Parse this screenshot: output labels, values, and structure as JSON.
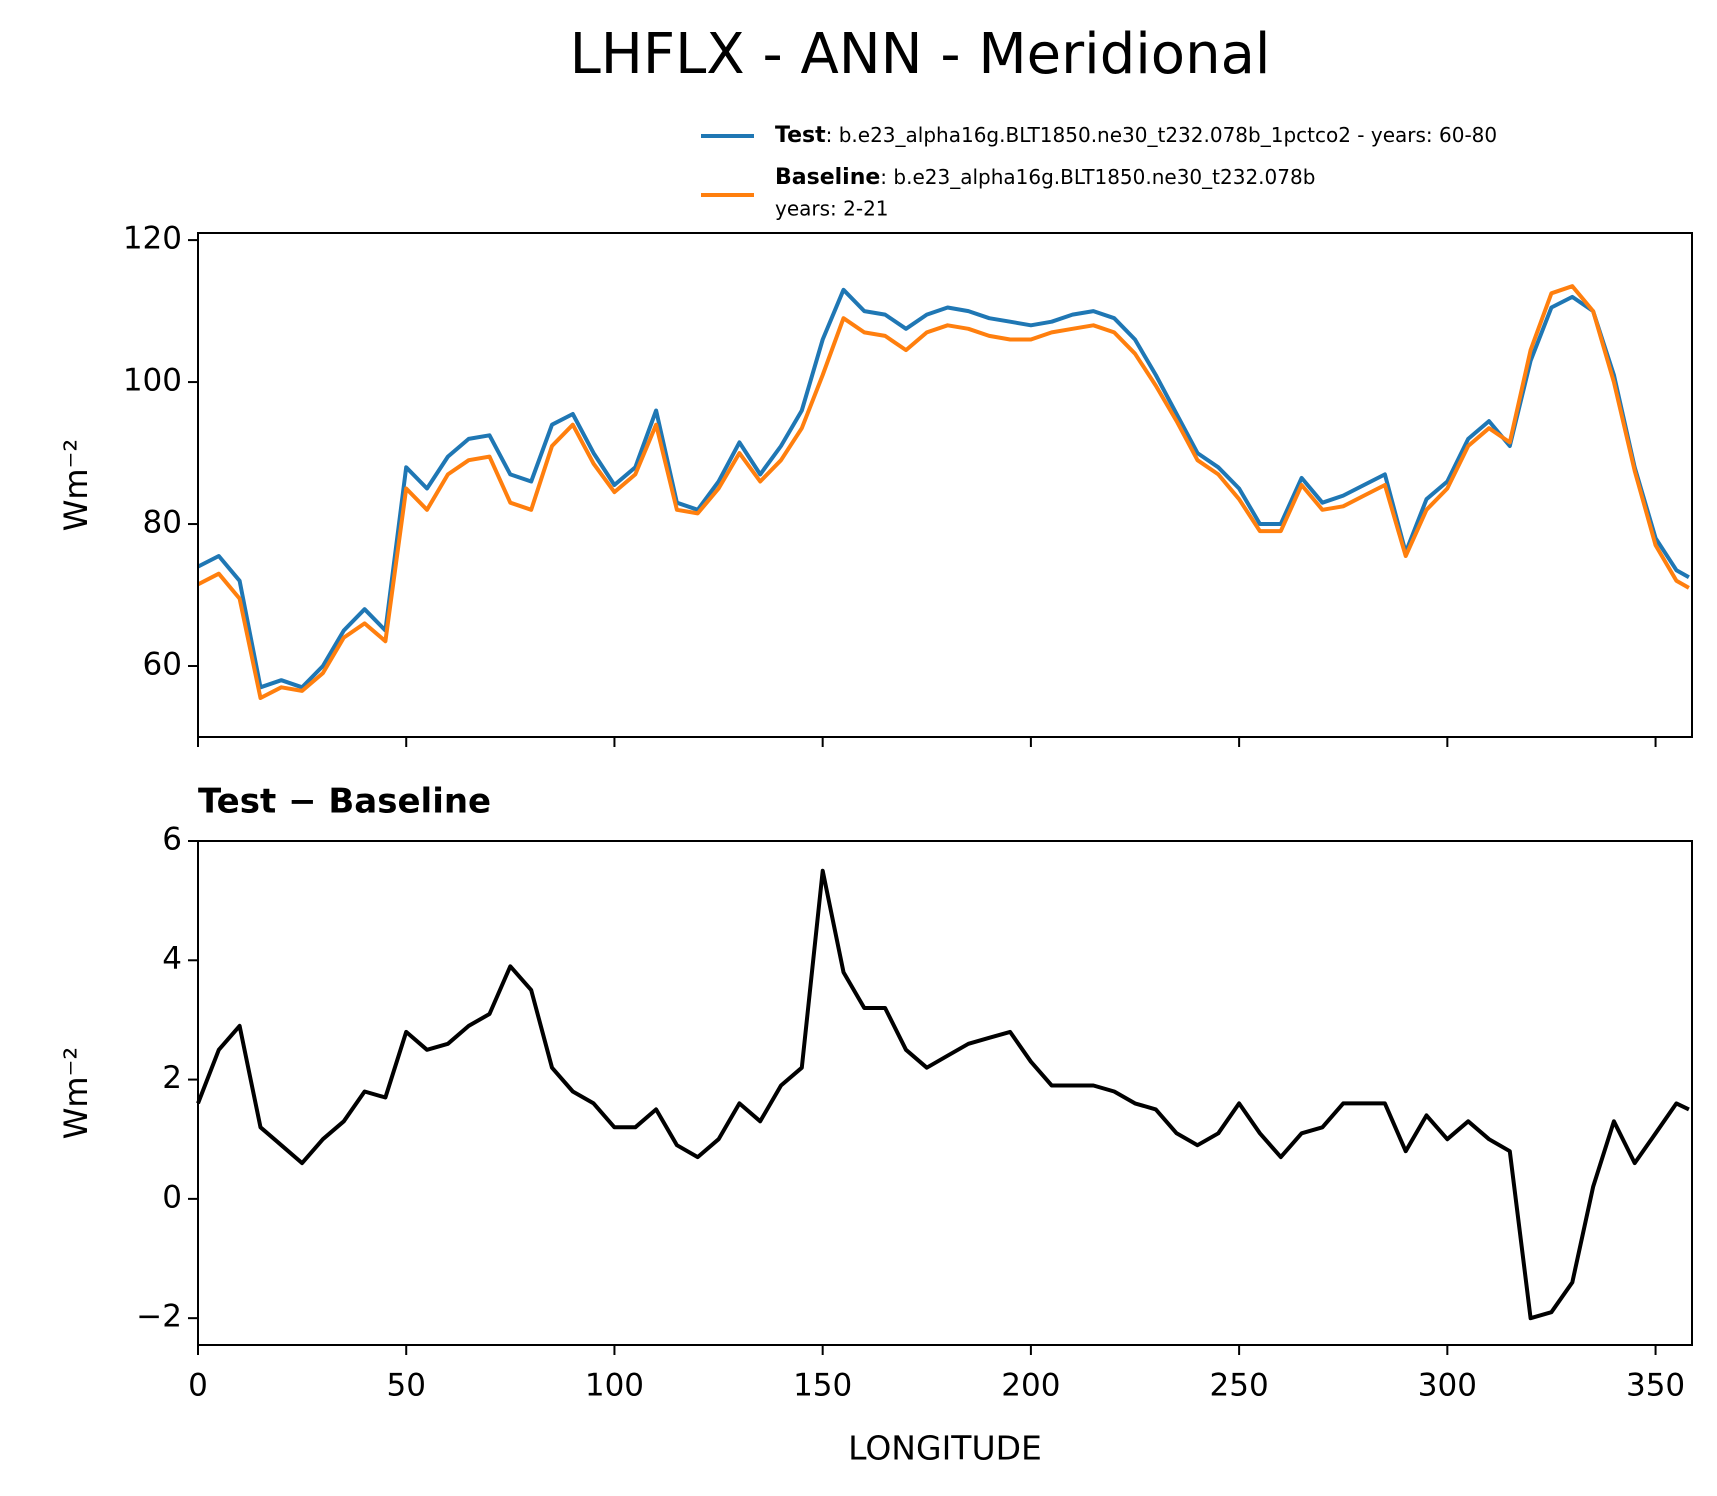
{
  "chart_data": [
    {
      "type": "line",
      "title": "LHFLX - ANN - Meridional",
      "ylabel": "Wm⁻²",
      "xlim": [
        0,
        358.75
      ],
      "ylim": [
        50,
        121
      ],
      "yticks": [
        60,
        80,
        100,
        120
      ],
      "x": [
        0,
        5,
        10,
        15,
        20,
        25,
        30,
        35,
        40,
        45,
        50,
        55,
        60,
        65,
        70,
        75,
        80,
        85,
        90,
        95,
        100,
        105,
        110,
        115,
        120,
        125,
        130,
        135,
        140,
        145,
        150,
        155,
        160,
        165,
        170,
        175,
        180,
        185,
        190,
        195,
        200,
        205,
        210,
        215,
        220,
        225,
        230,
        235,
        240,
        245,
        250,
        255,
        260,
        265,
        270,
        275,
        280,
        285,
        290,
        295,
        300,
        305,
        310,
        315,
        320,
        325,
        330,
        335,
        340,
        345,
        350,
        355,
        358
      ],
      "series": [
        {
          "name": "Test",
          "desc": [
            ": b.e23_alpha16g.BLT1850.ne30_t232.078b_1pctco2 - years: 60-80"
          ],
          "color": "#1f77b4",
          "values": [
            74,
            75.5,
            72,
            57,
            58,
            57,
            60,
            65,
            68,
            65,
            88,
            85,
            89.5,
            92,
            92.5,
            87,
            86,
            94,
            95.5,
            90,
            85.5,
            88,
            96,
            83,
            82,
            86,
            91.5,
            87,
            91,
            96,
            106,
            113,
            110,
            109.5,
            107.5,
            109.5,
            110.5,
            110,
            109,
            108.5,
            108,
            108.5,
            109.5,
            110,
            109,
            106,
            101,
            95.5,
            90,
            88,
            85,
            80,
            80,
            86.5,
            83,
            84,
            85.5,
            87,
            76,
            83.5,
            86,
            92,
            94.5,
            91,
            103,
            110.5,
            112,
            110,
            101,
            88,
            78,
            73.5,
            72.5
          ]
        },
        {
          "name": "Baseline",
          "desc": [
            ": b.e23_alpha16g.BLT1850.ne30_t232.078b",
            "years: 2-21"
          ],
          "color": "#ff7f0e",
          "values": [
            71.5,
            73,
            69.5,
            55.5,
            57,
            56.5,
            59,
            64,
            66,
            63.5,
            85,
            82,
            87,
            89,
            89.5,
            83,
            82,
            91,
            94,
            88.5,
            84.5,
            87,
            94,
            82,
            81.5,
            85,
            90,
            86,
            89,
            93.5,
            101,
            109,
            107,
            106.5,
            104.5,
            107,
            108,
            107.5,
            106.5,
            106,
            106,
            107,
            107.5,
            108,
            107,
            104,
            99.5,
            94.5,
            89,
            87,
            83.5,
            79,
            79,
            85.5,
            82,
            82.5,
            84,
            85.5,
            75.5,
            82,
            85,
            91,
            93.5,
            91.5,
            104.5,
            112.5,
            113.5,
            110,
            100,
            87.5,
            77,
            72,
            71
          ]
        }
      ]
    },
    {
      "type": "line",
      "title": "Test − Baseline",
      "ylabel": "Wm⁻²",
      "xlabel": "LONGITUDE",
      "xlim": [
        0,
        358.75
      ],
      "ylim": [
        -2.45,
        6
      ],
      "xticks": [
        0,
        50,
        100,
        150,
        200,
        250,
        300,
        350
      ],
      "yticks": [
        {
          "value": -2,
          "label": "−2"
        },
        0,
        2,
        4,
        6
      ],
      "x": [
        0,
        5,
        10,
        15,
        20,
        25,
        30,
        35,
        40,
        45,
        50,
        55,
        60,
        65,
        70,
        75,
        80,
        85,
        90,
        95,
        100,
        105,
        110,
        115,
        120,
        125,
        130,
        135,
        140,
        145,
        150,
        155,
        160,
        165,
        170,
        175,
        180,
        185,
        190,
        195,
        200,
        205,
        210,
        215,
        220,
        225,
        230,
        235,
        240,
        245,
        250,
        255,
        260,
        265,
        270,
        275,
        280,
        285,
        290,
        295,
        300,
        305,
        310,
        315,
        320,
        325,
        330,
        335,
        340,
        345,
        350,
        355,
        358
      ],
      "series": [
        {
          "color": "#000000",
          "values": [
            1.6,
            2.5,
            2.9,
            1.2,
            0.9,
            0.6,
            1.0,
            1.3,
            1.8,
            1.7,
            2.8,
            2.5,
            2.6,
            2.9,
            3.1,
            3.9,
            3.5,
            2.2,
            1.8,
            1.6,
            1.2,
            1.2,
            1.5,
            0.9,
            0.7,
            1.0,
            1.6,
            1.3,
            1.9,
            2.2,
            5.5,
            3.8,
            3.2,
            3.2,
            2.5,
            2.2,
            2.4,
            2.6,
            2.7,
            2.8,
            2.3,
            1.9,
            1.9,
            1.9,
            1.8,
            1.6,
            1.5,
            1.1,
            0.9,
            1.1,
            1.6,
            1.1,
            0.7,
            1.1,
            1.2,
            1.6,
            1.6,
            1.6,
            0.8,
            1.4,
            1.0,
            1.3,
            1.0,
            0.8,
            -2.0,
            -1.9,
            -1.4,
            0.2,
            1.3,
            0.6,
            1.1,
            1.6,
            1.5
          ]
        }
      ]
    }
  ]
}
